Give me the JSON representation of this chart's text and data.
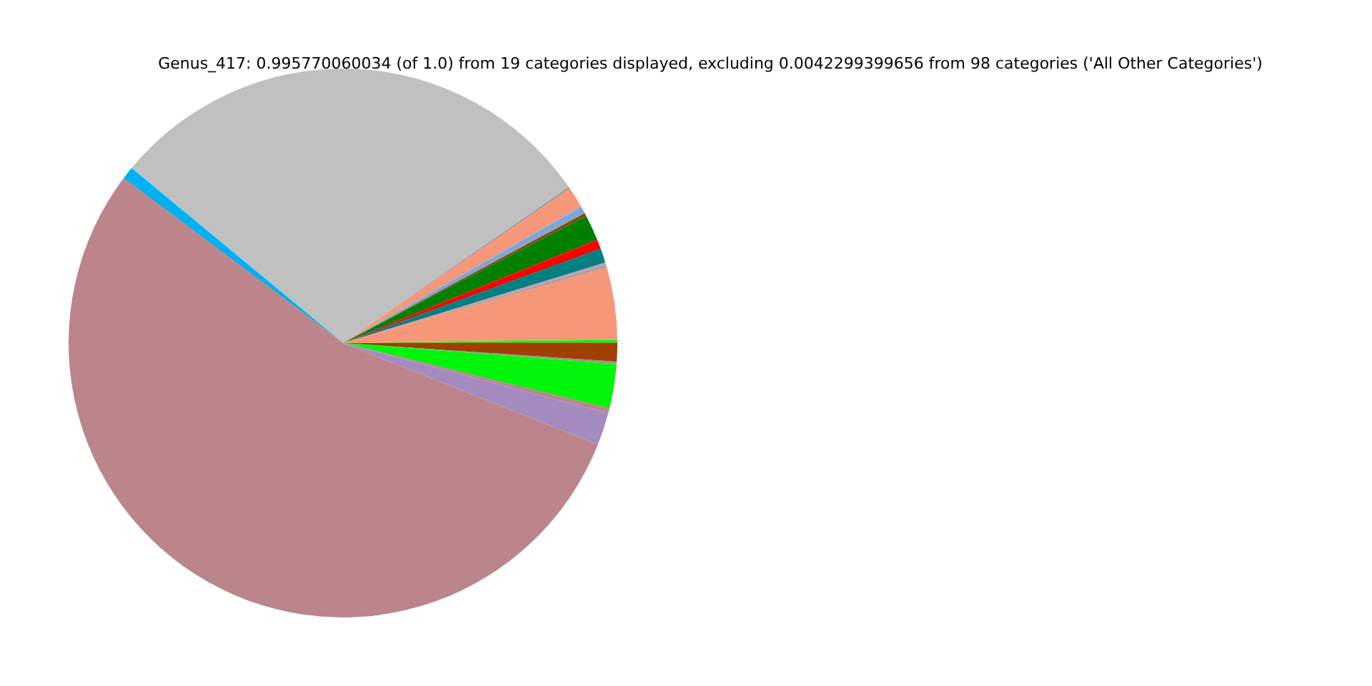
{
  "chart_data": {
    "type": "pie",
    "title": "Genus_417: 0.995770060034 (of 1.0) from 19 categories displayed, excluding 0.0042299399656 from 98 categories ('All Other Categories')",
    "categories": [
      null,
      null,
      null,
      null,
      null,
      null,
      null,
      null,
      null,
      null,
      null,
      null,
      null,
      null,
      null,
      null,
      null,
      null,
      null
    ],
    "values": [
      0.19,
      4.25,
      0.15,
      0.15,
      0.83,
      0.56,
      1.53,
      0.19,
      0.42,
      1.22,
      0.15,
      29.36,
      0.75,
      54.21,
      1.92,
      0.28,
      2.61,
      0.15,
      1.08
    ],
    "colors": [
      "#00f50a",
      "#f7977a",
      "#a0a0a0",
      "#b5a0c0",
      "#008080",
      "#ff0000",
      "#008000",
      "#8b4513",
      "#7ba7d9",
      "#f7977a",
      "#a0a0a0",
      "#c0c0c0",
      "#00b0f0",
      "#bc848b",
      "#a38bc0",
      "#bc848b",
      "#00f50a",
      "#bc848b",
      "#a04000"
    ]
  }
}
